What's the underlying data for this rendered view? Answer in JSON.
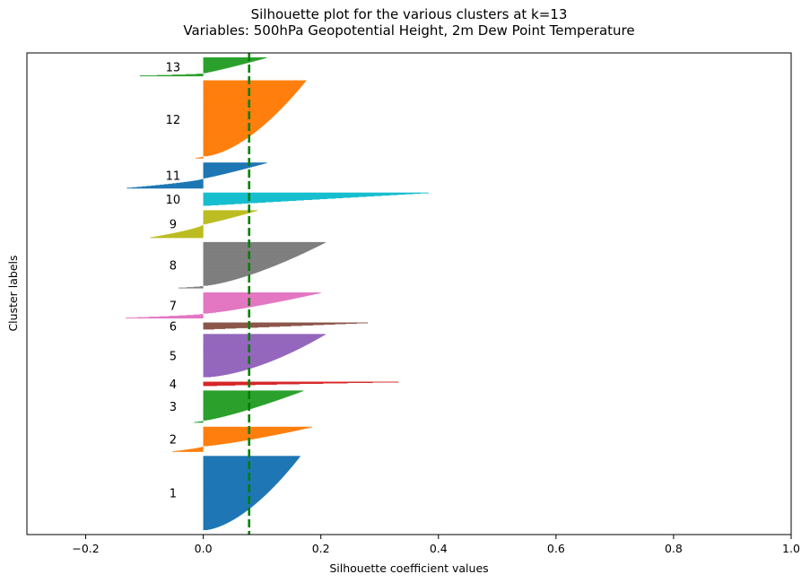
{
  "chart_data": {
    "type": "bar",
    "title_line1": "Silhouette plot for the various clusters at k=13",
    "title_line2": "Variables: 500hPa Geopotential Height, 2m Dew Point Temperature",
    "xlabel": "Silhouette coefficient values",
    "ylabel": "Cluster labels",
    "xlim": [
      -0.3,
      1.0
    ],
    "xticks": [
      "−0.2",
      "0.0",
      "0.2",
      "0.4",
      "0.6",
      "0.8",
      "1.0"
    ],
    "xtick_values": [
      -0.2,
      0.0,
      0.2,
      0.4,
      0.6,
      0.8,
      1.0
    ],
    "average_silhouette": 0.078,
    "average_line_color": "#008000",
    "clusters": [
      {
        "label": "1",
        "color": "#1f77b4",
        "size": 168,
        "max": 0.165,
        "shape": 0.6,
        "min": 0.0,
        "neg_frac": 0.0
      },
      {
        "label": "2",
        "color": "#ff7f0e",
        "size": 56,
        "max": 0.185,
        "shape": 0.8,
        "min": -0.052,
        "neg_frac": 0.22
      },
      {
        "label": "3",
        "color": "#2ca02c",
        "size": 72,
        "max": 0.17,
        "shape": 0.8,
        "min": -0.015,
        "neg_frac": 0.05
      },
      {
        "label": "4",
        "color": "#d62728",
        "size": 10,
        "max": 0.332,
        "shape": 1.2,
        "min": 0.0,
        "neg_frac": 0.0
      },
      {
        "label": "5",
        "color": "#9467bd",
        "size": 98,
        "max": 0.208,
        "shape": 0.6,
        "min": 0.0,
        "neg_frac": 0.0
      },
      {
        "label": "6",
        "color": "#8c564b",
        "size": 16,
        "max": 0.28,
        "shape": 1.0,
        "min": 0.0,
        "neg_frac": 0.0
      },
      {
        "label": "7",
        "color": "#e377c2",
        "size": 58,
        "max": 0.2,
        "shape": 0.8,
        "min": -0.132,
        "neg_frac": 0.18
      },
      {
        "label": "8",
        "color": "#7f7f7f",
        "size": 104,
        "max": 0.208,
        "shape": 0.7,
        "min": -0.042,
        "neg_frac": 0.05
      },
      {
        "label": "9",
        "color": "#bcbd22",
        "size": 62,
        "max": 0.092,
        "shape": 0.9,
        "min": -0.09,
        "neg_frac": 0.48
      },
      {
        "label": "10",
        "color": "#17becf",
        "size": 30,
        "max": 0.383,
        "shape": 1.0,
        "min": 0.0,
        "neg_frac": 0.0
      },
      {
        "label": "11",
        "color": "#1f77b4",
        "size": 58,
        "max": 0.108,
        "shape": 0.9,
        "min": -0.13,
        "neg_frac": 0.38
      },
      {
        "label": "12",
        "color": "#ff7f0e",
        "size": 176,
        "max": 0.175,
        "shape": 0.6,
        "min": -0.013,
        "neg_frac": 0.02
      },
      {
        "label": "13",
        "color": "#2ca02c",
        "size": 42,
        "max": 0.108,
        "shape": 0.9,
        "min": -0.108,
        "neg_frac": 0.15
      }
    ]
  }
}
